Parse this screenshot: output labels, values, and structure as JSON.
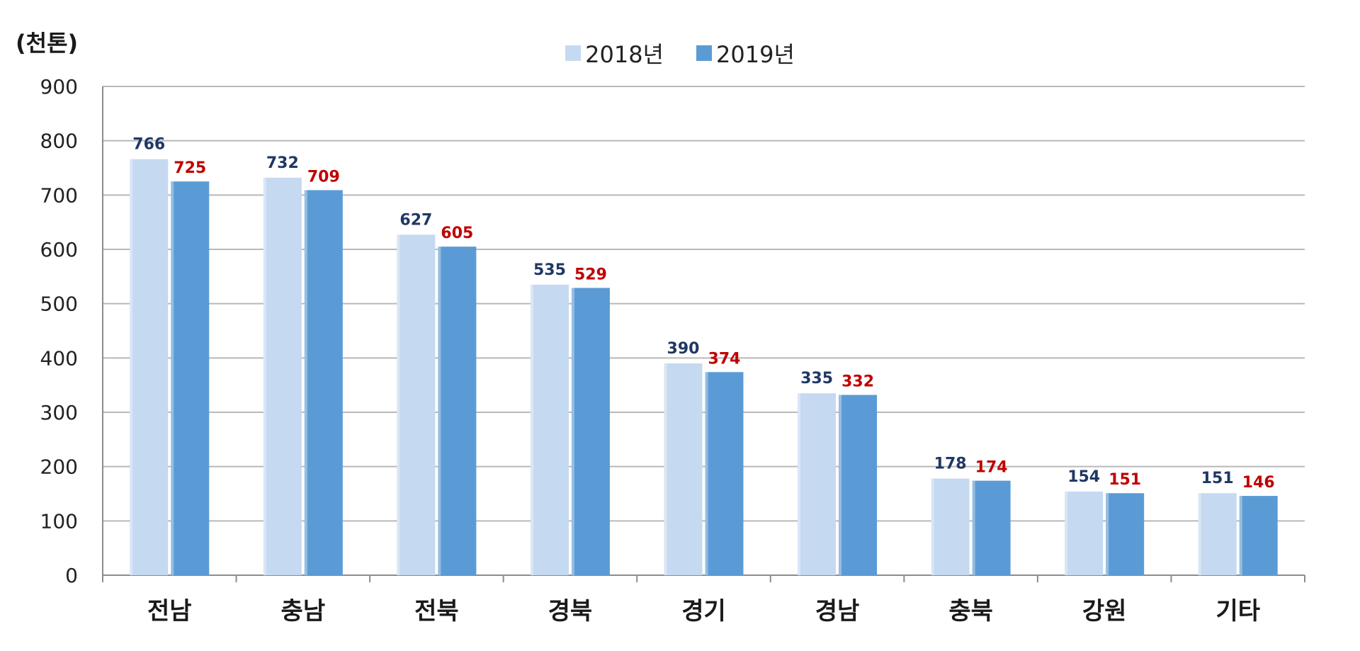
{
  "chart_data": {
    "type": "bar",
    "unit_label": "(천톤)",
    "categories": [
      "전남",
      "충남",
      "전북",
      "경북",
      "경기",
      "경남",
      "충북",
      "강원",
      "기타"
    ],
    "series": [
      {
        "name": "2018년",
        "color": "#c5d9f1",
        "label_color": "#1f3864",
        "values": [
          766,
          732,
          627,
          535,
          390,
          335,
          178,
          154,
          151
        ]
      },
      {
        "name": "2019년",
        "color": "#5b9bd5",
        "label_color": "#c00000",
        "values": [
          725,
          709,
          605,
          529,
          374,
          332,
          174,
          151,
          146
        ]
      }
    ],
    "ylim": [
      0,
      900
    ],
    "yticks": [
      0,
      100,
      200,
      300,
      400,
      500,
      600,
      700,
      800,
      900
    ],
    "grid": true,
    "legend_position": "top-center"
  }
}
